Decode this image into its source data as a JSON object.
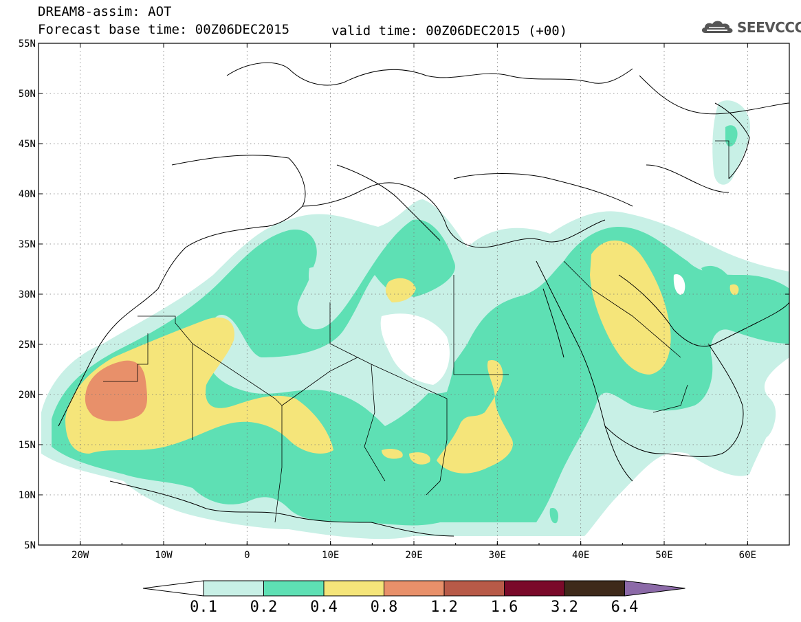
{
  "header": {
    "title": "DREAM8-assim: AOT",
    "base_time": "Forecast base time: 00Z06DEC2015",
    "valid_time": "valid time: 00Z06DEC2015 (+00)",
    "logo_text": "SEEVCCC",
    "logo_icon": "cloud-icon"
  },
  "axes": {
    "lat_labels": [
      "55N",
      "50N",
      "45N",
      "40N",
      "35N",
      "30N",
      "25N",
      "20N",
      "15N",
      "10N",
      "5N"
    ],
    "lon_labels": [
      "20W",
      "10W",
      "0",
      "10E",
      "20E",
      "30E",
      "40E",
      "50E",
      "60E"
    ]
  },
  "colorbar": {
    "labels": [
      "0.1",
      "0.2",
      "0.4",
      "0.8",
      "1.2",
      "1.6",
      "3.2",
      "6.4"
    ],
    "colors": [
      "#c8f0e6",
      "#5ee0b4",
      "#f5e57a",
      "#e8906a",
      "#b85a48",
      "#7a0a2a",
      "#3e2a1a",
      "#8c6aa8"
    ]
  },
  "chart_data": {
    "type": "heatmap",
    "title": "DREAM8-assim: AOT",
    "variable": "AOT",
    "lon_range": [
      -25,
      65
    ],
    "lat_range": [
      5,
      55
    ],
    "levels": [
      0.1,
      0.2,
      0.4,
      0.8,
      1.2,
      1.6,
      3.2,
      6.4
    ]
  }
}
